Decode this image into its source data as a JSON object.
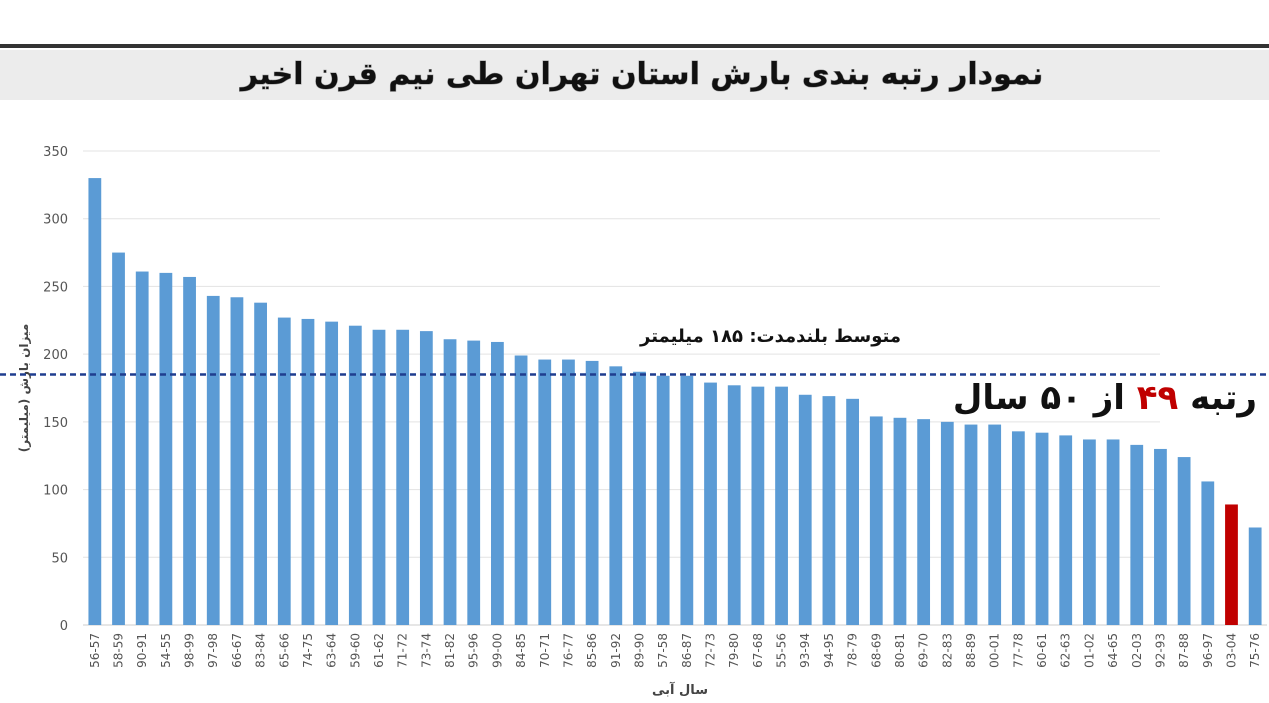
{
  "chart_data": {
    "type": "bar",
    "title": "نمودار رتبه بندی بارش استان تهران طی نیم قرن اخیر",
    "y_label": "میزان بارش (میلیمتر)",
    "x_label": "سال آبی",
    "categories": [
      "56-57",
      "58-59",
      "90-91",
      "54-55",
      "98-99",
      "97-98",
      "66-67",
      "83-84",
      "65-66",
      "74-75",
      "63-64",
      "59-60",
      "61-62",
      "71-72",
      "73-74",
      "81-82",
      "95-96",
      "99-00",
      "84-85",
      "70-71",
      "76-77",
      "85-86",
      "91-92",
      "89-90",
      "57-58",
      "86-87",
      "72-73",
      "79-80",
      "67-68",
      "55-56",
      "93-94",
      "94-95",
      "78-79",
      "68-69",
      "80-81",
      "69-70",
      "82-83",
      "88-89",
      "00-01",
      "77-78",
      "60-61",
      "62-63",
      "01-02",
      "64-65",
      "02-03",
      "92-93",
      "87-88",
      "96-97",
      "03-04",
      "75-76"
    ],
    "values": [
      330,
      275,
      261,
      260,
      257,
      243,
      242,
      238,
      227,
      226,
      224,
      221,
      218,
      218,
      217,
      211,
      210,
      209,
      199,
      196,
      196,
      195,
      191,
      187,
      184,
      184,
      179,
      177,
      176,
      176,
      170,
      169,
      167,
      154,
      153,
      152,
      150,
      148,
      148,
      143,
      142,
      140,
      137,
      137,
      133,
      130,
      124,
      106,
      89,
      72
    ],
    "colors": [
      "#5b9bd5",
      "#5b9bd5",
      "#5b9bd5",
      "#5b9bd5",
      "#5b9bd5",
      "#5b9bd5",
      "#5b9bd5",
      "#5b9bd5",
      "#5b9bd5",
      "#5b9bd5",
      "#5b9bd5",
      "#5b9bd5",
      "#5b9bd5",
      "#5b9bd5",
      "#5b9bd5",
      "#5b9bd5",
      "#5b9bd5",
      "#5b9bd5",
      "#5b9bd5",
      "#5b9bd5",
      "#5b9bd5",
      "#5b9bd5",
      "#5b9bd5",
      "#5b9bd5",
      "#5b9bd5",
      "#5b9bd5",
      "#5b9bd5",
      "#5b9bd5",
      "#5b9bd5",
      "#5b9bd5",
      "#5b9bd5",
      "#5b9bd5",
      "#5b9bd5",
      "#5b9bd5",
      "#5b9bd5",
      "#5b9bd5",
      "#5b9bd5",
      "#5b9bd5",
      "#5b9bd5",
      "#5b9bd5",
      "#5b9bd5",
      "#5b9bd5",
      "#5b9bd5",
      "#5b9bd5",
      "#5b9bd5",
      "#5b9bd5",
      "#5b9bd5",
      "#5b9bd5",
      "#c00000",
      "#5b9bd5"
    ],
    "ylim": [
      0,
      350
    ],
    "yticks": [
      0,
      50,
      100,
      150,
      200,
      250,
      300,
      350
    ],
    "grid": true,
    "reference_line": {
      "value": 185,
      "label": "متوسط بلندمدت: ۱۸۵ میلیمتر",
      "color": "#1f3d8f"
    },
    "rank_note": {
      "before": "رتبه",
      "rank": "۴۹",
      "after": "از ۵۰ سال",
      "rank_color": "#c00000"
    }
  }
}
